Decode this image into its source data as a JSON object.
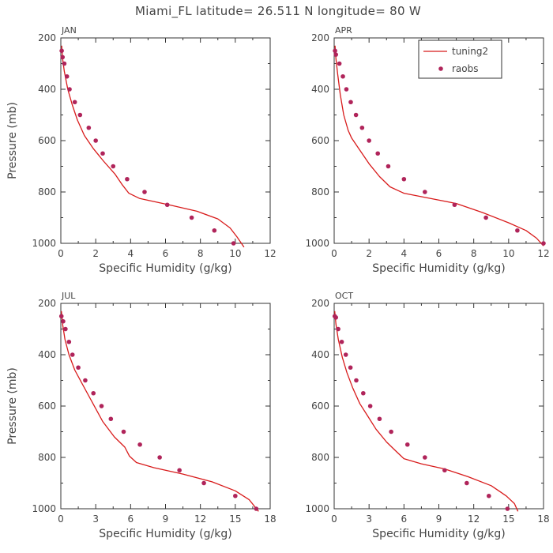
{
  "figure_title": "Miami_FL   latitude= 26.511 N longitude= 80 W",
  "colors": {
    "model_line": "#d81b1b",
    "obs_point": "#b0245a",
    "axis": "#333333",
    "text": "#444444"
  },
  "legend": {
    "placement": "top-right of APR panel",
    "entries": [
      {
        "label": "tuning2",
        "kind": "line"
      },
      {
        "label": "raobs",
        "kind": "point"
      }
    ]
  },
  "chart_data": [
    {
      "type": "line",
      "panel_label": "JAN",
      "xlabel": "Specific Humidity (g/kg)",
      "ylabel": "Pressure (mb)",
      "xlim": [
        0,
        12
      ],
      "ylim": [
        1000,
        200
      ],
      "y_inverted": true,
      "xticks": [
        0,
        2,
        4,
        6,
        8,
        10,
        12
      ],
      "yticks": [
        200,
        400,
        600,
        800,
        1000
      ],
      "series": [
        {
          "name": "tuning2",
          "style": "line",
          "x": [
            0.05,
            0.1,
            0.2,
            0.4,
            0.65,
            0.95,
            1.35,
            1.85,
            2.45,
            3.1,
            3.5,
            3.9,
            4.5,
            6.2,
            7.8,
            9.0,
            9.7,
            10.1,
            10.5
          ],
          "y": [
            230,
            280,
            330,
            400,
            460,
            520,
            580,
            630,
            680,
            730,
            770,
            805,
            825,
            850,
            875,
            905,
            940,
            975,
            1015
          ]
        },
        {
          "name": "raobs",
          "style": "point",
          "x": [
            0.05,
            0.1,
            0.2,
            0.35,
            0.5,
            0.8,
            1.1,
            1.6,
            2.0,
            2.4,
            3.0,
            3.8,
            4.8,
            6.1,
            7.5,
            8.8,
            9.9
          ],
          "y": [
            250,
            275,
            300,
            350,
            400,
            450,
            500,
            550,
            600,
            650,
            700,
            750,
            800,
            850,
            900,
            950,
            1000
          ]
        }
      ]
    },
    {
      "type": "line",
      "panel_label": "APR",
      "xlabel": "Specific Humidity (g/kg)",
      "ylabel": "",
      "xlim": [
        0,
        12
      ],
      "ylim": [
        1000,
        200
      ],
      "y_inverted": true,
      "xticks": [
        0,
        2,
        4,
        6,
        8,
        10,
        12
      ],
      "yticks": [
        200,
        400,
        600,
        800,
        1000
      ],
      "series": [
        {
          "name": "tuning2",
          "style": "line",
          "x": [
            0.05,
            0.1,
            0.2,
            0.35,
            0.55,
            0.8,
            1.0,
            1.4,
            2.0,
            2.6,
            3.2,
            4.0,
            5.5,
            7.0,
            8.5,
            10.0,
            11.0,
            11.6,
            12.0
          ],
          "y": [
            230,
            280,
            340,
            420,
            500,
            560,
            590,
            630,
            690,
            740,
            780,
            805,
            825,
            845,
            880,
            920,
            950,
            980,
            1010
          ]
        },
        {
          "name": "raobs",
          "style": "point",
          "x": [
            0.05,
            0.1,
            0.3,
            0.5,
            0.7,
            0.95,
            1.25,
            1.6,
            2.0,
            2.5,
            3.1,
            4.0,
            5.2,
            6.9,
            8.7,
            10.5,
            12.0
          ],
          "y": [
            250,
            265,
            300,
            350,
            400,
            450,
            500,
            550,
            600,
            650,
            700,
            750,
            800,
            850,
            900,
            950,
            1000
          ]
        }
      ]
    },
    {
      "type": "line",
      "panel_label": "JUL",
      "xlabel": "Specific Humidity (g/kg)",
      "ylabel": "Pressure (mb)",
      "xlim": [
        0,
        18
      ],
      "ylim": [
        1000,
        200
      ],
      "y_inverted": true,
      "xticks": [
        0,
        3,
        6,
        9,
        12,
        15,
        18
      ],
      "yticks": [
        200,
        400,
        600,
        800,
        1000
      ],
      "series": [
        {
          "name": "tuning2",
          "style": "line",
          "x": [
            0.05,
            0.15,
            0.35,
            0.7,
            1.2,
            1.8,
            2.4,
            3.0,
            3.6,
            4.6,
            5.5,
            5.9,
            6.5,
            8.0,
            10.5,
            13.0,
            15.0,
            16.2,
            17.0
          ],
          "y": [
            230,
            280,
            340,
            400,
            460,
            510,
            560,
            610,
            660,
            720,
            760,
            795,
            820,
            840,
            865,
            895,
            930,
            965,
            1010
          ]
        },
        {
          "name": "raobs",
          "style": "point",
          "x": [
            0.05,
            0.2,
            0.4,
            0.7,
            1.0,
            1.5,
            2.1,
            2.8,
            3.5,
            4.3,
            5.4,
            6.8,
            8.5,
            10.2,
            12.3,
            15.0,
            16.8
          ],
          "y": [
            250,
            270,
            300,
            350,
            400,
            450,
            500,
            550,
            600,
            650,
            700,
            750,
            800,
            850,
            900,
            950,
            1000
          ]
        }
      ]
    },
    {
      "type": "line",
      "panel_label": "OCT",
      "xlabel": "Specific Humidity (g/kg)",
      "ylabel": "",
      "xlim": [
        0,
        18
      ],
      "ylim": [
        1000,
        200
      ],
      "y_inverted": true,
      "xticks": [
        0,
        3,
        6,
        9,
        12,
        15,
        18
      ],
      "yticks": [
        200,
        400,
        600,
        800,
        1000
      ],
      "series": [
        {
          "name": "tuning2",
          "style": "line",
          "x": [
            0.05,
            0.15,
            0.35,
            0.7,
            1.1,
            1.6,
            2.2,
            2.9,
            3.6,
            4.5,
            5.3,
            6.0,
            7.5,
            9.5,
            11.5,
            13.5,
            14.8,
            15.5,
            15.8
          ],
          "y": [
            230,
            280,
            340,
            410,
            470,
            530,
            590,
            640,
            690,
            740,
            775,
            805,
            825,
            845,
            875,
            910,
            950,
            980,
            1010
          ]
        },
        {
          "name": "raobs",
          "style": "point",
          "x": [
            0.05,
            0.15,
            0.35,
            0.65,
            1.0,
            1.4,
            1.9,
            2.5,
            3.1,
            3.9,
            4.9,
            6.3,
            7.8,
            9.5,
            11.4,
            13.3,
            14.9
          ],
          "y": [
            250,
            255,
            300,
            350,
            400,
            450,
            500,
            550,
            600,
            650,
            700,
            750,
            800,
            850,
            900,
            950,
            1000
          ]
        }
      ]
    }
  ]
}
